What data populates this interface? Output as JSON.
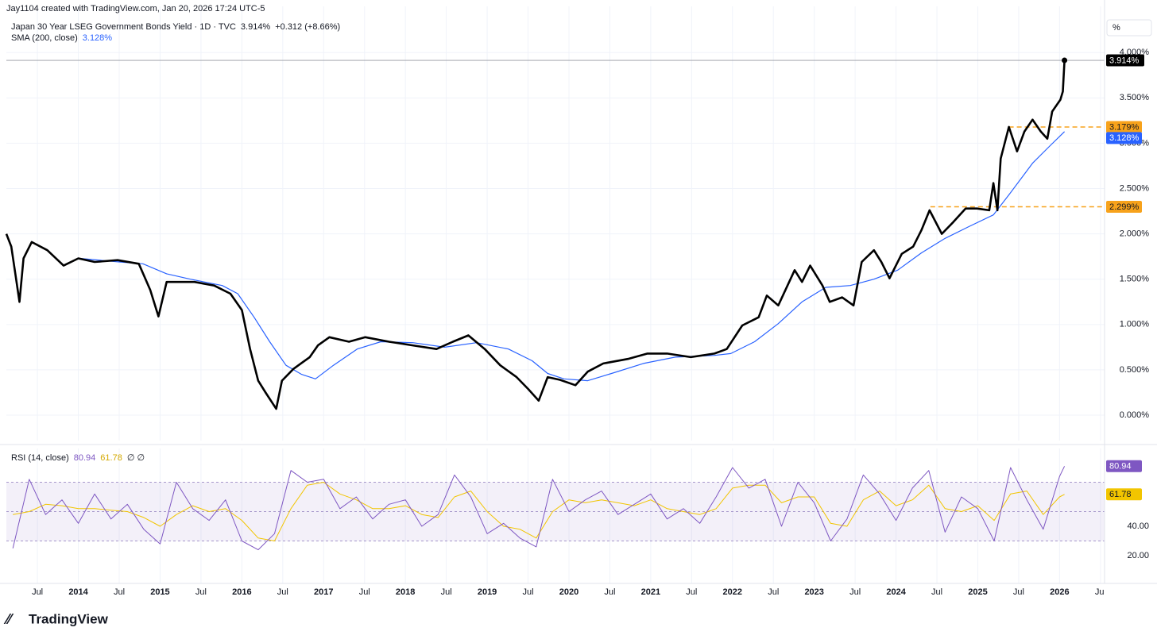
{
  "attribution": "Jay1104 created with TradingView.com, Jan 20, 2026 17:24 UTC-5",
  "logo": "TradingView",
  "chart_data": [
    {
      "type": "line",
      "title": "Japan 30 Year LSEG Government Bonds Yield · 1D · TVC",
      "last_value_label": "3.914%",
      "change_label": "+0.312 (+8.66%)",
      "unit_label": "%",
      "xlim": [
        2013.12,
        2026.55
      ],
      "ylim": [
        -0.28,
        4.51
      ],
      "grid": true,
      "xticks": [
        {
          "value": 2013.5,
          "label": "Jul"
        },
        2014,
        {
          "value": 2014.5,
          "label": "Jul"
        },
        2015,
        {
          "value": 2015.5,
          "label": "Jul"
        },
        2016,
        {
          "value": 2016.5,
          "label": "Jul"
        },
        2017,
        {
          "value": 2017.5,
          "label": "Jul"
        },
        2018,
        {
          "value": 2018.5,
          "label": "Jul"
        },
        2019,
        {
          "value": 2019.5,
          "label": "Jul"
        },
        2020,
        {
          "value": 2020.5,
          "label": "Jul"
        },
        2021,
        {
          "value": 2021.5,
          "label": "Jul"
        },
        2022,
        {
          "value": 2022.5,
          "label": "Jul"
        },
        2023,
        {
          "value": 2023.5,
          "label": "Jul"
        },
        2024,
        {
          "value": 2024.5,
          "label": "Jul"
        },
        2025,
        {
          "value": 2025.5,
          "label": "Jul"
        },
        2026,
        {
          "value": 2026.5,
          "label": "Jul"
        }
      ],
      "yticks": [
        {
          "value": 0,
          "label": "0.000%"
        },
        {
          "value": 0.5,
          "label": "0.500%"
        },
        {
          "value": 1,
          "label": "1.000%"
        },
        {
          "value": 1.5,
          "label": "1.500%"
        },
        {
          "value": 2,
          "label": "2.000%"
        },
        {
          "value": 2.5,
          "label": "2.500%"
        },
        {
          "value": 3,
          "label": "3.000%"
        },
        {
          "value": 3.5,
          "label": "3.500%"
        },
        {
          "value": 4,
          "label": "4.000%"
        }
      ],
      "levels": [
        {
          "value": 3.179,
          "label": "3.179%",
          "from": 2025.38,
          "color": "#f7a21b"
        },
        {
          "value": 2.299,
          "label": "2.299%",
          "from": 2024.42,
          "color": "#f7a21b"
        }
      ],
      "series": [
        {
          "color": "#000000",
          "x": [
            2013.12,
            2013.18,
            2013.23,
            2013.28,
            2013.33,
            2013.43,
            2013.62,
            2013.82,
            2014.0,
            2014.2,
            2014.48,
            2014.74,
            2014.88,
            2014.98,
            2015.08,
            2015.27,
            2015.42,
            2015.66,
            2015.86,
            2016.0,
            2016.1,
            2016.2,
            2016.29,
            2016.42,
            2016.49,
            2016.63,
            2016.83,
            2016.93,
            2017.07,
            2017.31,
            2017.51,
            2017.8,
            2018.09,
            2018.38,
            2018.58,
            2018.77,
            2018.97,
            2019.16,
            2019.36,
            2019.5,
            2019.63,
            2019.74,
            2019.89,
            2020.08,
            2020.23,
            2020.42,
            2020.72,
            2020.96,
            2021.2,
            2021.49,
            2021.78,
            2021.93,
            2022.12,
            2022.32,
            2022.42,
            2022.56,
            2022.76,
            2022.85,
            2022.95,
            2023.1,
            2023.19,
            2023.34,
            2023.48,
            2023.58,
            2023.73,
            2023.82,
            2023.92,
            2024.07,
            2024.21,
            2024.31,
            2024.41,
            2024.56,
            2024.7,
            2024.85,
            2024.99,
            2025.14,
            2025.19,
            2025.24,
            2025.28,
            2025.38,
            2025.48,
            2025.57,
            2025.67,
            2025.77,
            2025.85,
            2025.91,
            2026.01,
            2026.04,
            2026.06
          ],
          "values": [
            2.0,
            1.86,
            1.56,
            1.25,
            1.73,
            1.91,
            1.82,
            1.65,
            1.73,
            1.69,
            1.71,
            1.67,
            1.38,
            1.09,
            1.47,
            1.47,
            1.47,
            1.43,
            1.34,
            1.16,
            0.73,
            0.38,
            0.25,
            0.07,
            0.38,
            0.51,
            0.64,
            0.77,
            0.86,
            0.81,
            0.86,
            0.81,
            0.77,
            0.73,
            0.81,
            0.88,
            0.73,
            0.55,
            0.42,
            0.29,
            0.16,
            0.42,
            0.39,
            0.33,
            0.48,
            0.57,
            0.62,
            0.68,
            0.68,
            0.64,
            0.68,
            0.73,
            0.99,
            1.08,
            1.32,
            1.21,
            1.6,
            1.47,
            1.65,
            1.43,
            1.25,
            1.3,
            1.21,
            1.69,
            1.82,
            1.69,
            1.51,
            1.78,
            1.86,
            2.04,
            2.26,
            2.0,
            2.13,
            2.28,
            2.28,
            2.26,
            2.56,
            2.26,
            2.83,
            3.18,
            2.91,
            3.13,
            3.26,
            3.13,
            3.05,
            3.35,
            3.48,
            3.57,
            3.914
          ]
        },
        {
          "name": "SMA (200, close)",
          "color": "#2962ff",
          "last_value_label": "3.128%",
          "x": [
            2014.01,
            2014.5,
            2014.79,
            2015.08,
            2015.37,
            2015.76,
            2015.95,
            2016.15,
            2016.34,
            2016.54,
            2016.73,
            2016.9,
            2017.12,
            2017.41,
            2017.7,
            2018.09,
            2018.48,
            2018.87,
            2019.26,
            2019.55,
            2019.74,
            2019.94,
            2020.23,
            2020.52,
            2020.91,
            2021.3,
            2021.78,
            2021.98,
            2022.27,
            2022.56,
            2022.85,
            2023.14,
            2023.44,
            2023.73,
            2024.02,
            2024.31,
            2024.6,
            2024.89,
            2025.19,
            2025.38,
            2025.67,
            2025.87,
            2026.06
          ],
          "values": [
            1.73,
            1.69,
            1.67,
            1.56,
            1.5,
            1.43,
            1.34,
            1.08,
            0.81,
            0.55,
            0.45,
            0.4,
            0.55,
            0.73,
            0.81,
            0.8,
            0.75,
            0.8,
            0.73,
            0.6,
            0.46,
            0.4,
            0.38,
            0.46,
            0.57,
            0.64,
            0.66,
            0.68,
            0.81,
            1.01,
            1.25,
            1.41,
            1.43,
            1.5,
            1.6,
            1.79,
            1.95,
            2.08,
            2.21,
            2.43,
            2.78,
            2.96,
            3.128
          ]
        }
      ]
    },
    {
      "type": "line",
      "title": "RSI (14, close)",
      "legend_extra": "∅ ∅",
      "xlim": [
        2013.12,
        2026.55
      ],
      "ylim": [
        1.1,
        93
      ],
      "yticks": [
        {
          "value": 20,
          "label": "20.00"
        },
        {
          "value": 40,
          "label": "40.00"
        }
      ],
      "bands": {
        "upper": 70,
        "middle": 50,
        "lower": 30
      },
      "x": [
        2013.2,
        2013.4,
        2013.6,
        2013.8,
        2014.0,
        2014.2,
        2014.4,
        2014.6,
        2014.8,
        2015.0,
        2015.2,
        2015.4,
        2015.6,
        2015.8,
        2016.0,
        2016.2,
        2016.4,
        2016.6,
        2016.8,
        2017.0,
        2017.2,
        2017.4,
        2017.6,
        2017.8,
        2018.0,
        2018.2,
        2018.4,
        2018.6,
        2018.8,
        2019.0,
        2019.2,
        2019.4,
        2019.6,
        2019.8,
        2020.0,
        2020.2,
        2020.4,
        2020.6,
        2020.8,
        2021.0,
        2021.2,
        2021.4,
        2021.6,
        2021.8,
        2022.0,
        2022.2,
        2022.4,
        2022.6,
        2022.8,
        2023.0,
        2023.2,
        2023.4,
        2023.6,
        2023.8,
        2024.0,
        2024.2,
        2024.4,
        2024.6,
        2024.8,
        2025.0,
        2025.2,
        2025.4,
        2025.6,
        2025.8,
        2026.0,
        2026.06
      ],
      "series": [
        {
          "color": "#7e57c2",
          "values": [
            25,
            72,
            48,
            58,
            42,
            62,
            45,
            55,
            38,
            28,
            70,
            52,
            44,
            58,
            30,
            24,
            35,
            78,
            70,
            72,
            52,
            60,
            45,
            55,
            58,
            40,
            48,
            75,
            60,
            35,
            42,
            32,
            26,
            72,
            50,
            58,
            64,
            48,
            55,
            62,
            45,
            52,
            42,
            60,
            80,
            66,
            72,
            40,
            70,
            56,
            30,
            45,
            75,
            62,
            44,
            66,
            78,
            36,
            60,
            52,
            30,
            80,
            58,
            38,
            74,
            80.94
          ]
        },
        {
          "color": "#f2c500",
          "values": [
            48,
            50,
            55,
            54,
            52,
            52,
            51,
            50,
            46,
            40,
            48,
            54,
            50,
            52,
            44,
            32,
            30,
            52,
            68,
            70,
            62,
            58,
            52,
            52,
            54,
            48,
            46,
            60,
            64,
            50,
            40,
            38,
            32,
            50,
            58,
            56,
            58,
            56,
            54,
            58,
            52,
            50,
            48,
            52,
            66,
            68,
            68,
            56,
            60,
            60,
            42,
            40,
            58,
            64,
            54,
            58,
            68,
            52,
            50,
            54,
            44,
            62,
            64,
            48,
            60,
            61.78
          ]
        }
      ]
    }
  ]
}
